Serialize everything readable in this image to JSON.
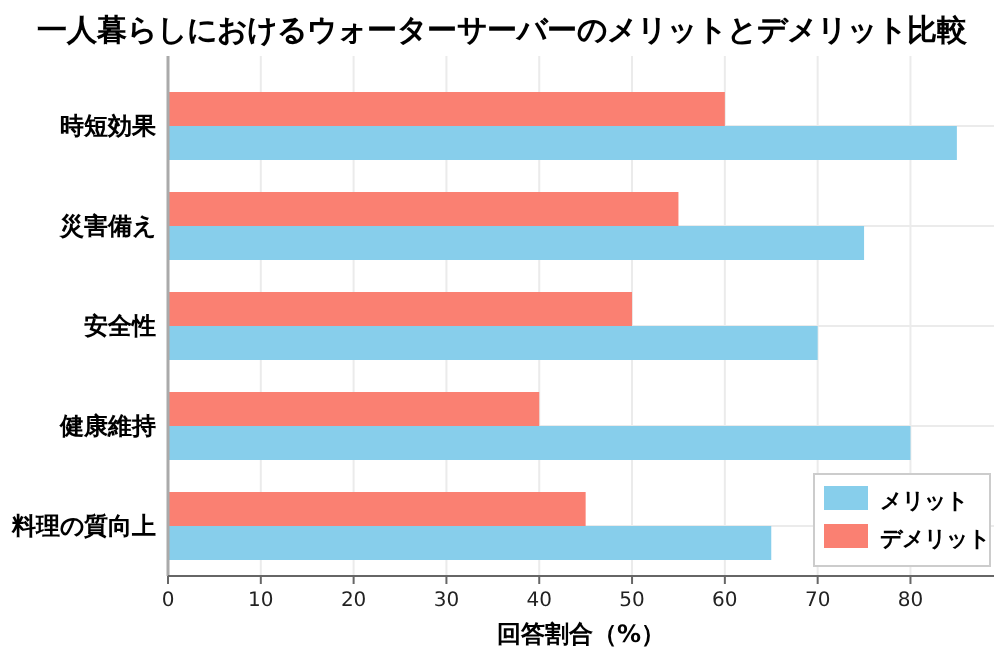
{
  "chart_data": {
    "type": "bar",
    "orientation": "horizontal",
    "title": "一人暮らしにおけるウォーターサーバーのメリットとデメリット比較",
    "xlabel": "回答割合（%）",
    "categories": [
      "時短効果",
      "災害備え",
      "安全性",
      "健康維持",
      "料理の質向上"
    ],
    "series": [
      {
        "name": "メリット",
        "color": "#87ceeb",
        "values": [
          85,
          75,
          70,
          80,
          65
        ]
      },
      {
        "name": "デメリット",
        "color": "#fa8072",
        "values": [
          60,
          55,
          50,
          40,
          45
        ]
      }
    ],
    "xlim": [
      0,
      89
    ],
    "xticks": [
      0,
      10,
      20,
      30,
      40,
      50,
      60,
      70,
      80
    ],
    "grid": true,
    "legend": "bottom right"
  }
}
